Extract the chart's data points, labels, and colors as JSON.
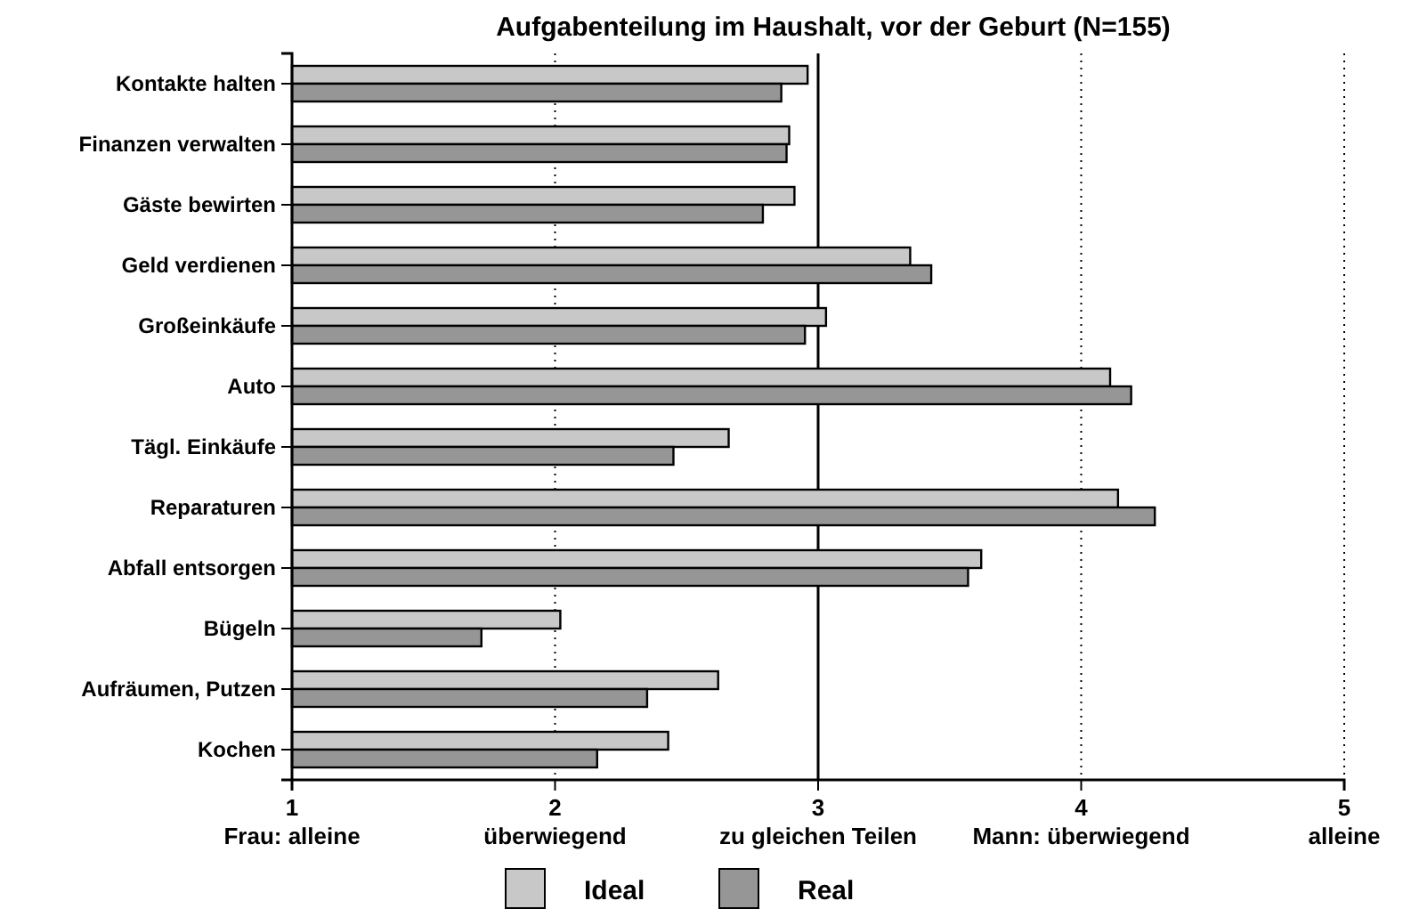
{
  "chart_data": {
    "type": "bar",
    "orientation": "horizontal",
    "title": "Aufgabenteilung im Haushalt, vor der Geburt (N=155)",
    "categories": [
      "Kontakte halten",
      "Finanzen verwalten",
      "Gäste bewirten",
      "Geld verdienen",
      "Großeinkäufe",
      "Auto",
      "Tägl. Einkäufe",
      "Reparaturen",
      "Abfall entsorgen",
      "Bügeln",
      "Aufräumen, Putzen",
      "Kochen"
    ],
    "series": [
      {
        "name": "Ideal",
        "color": "#c8c8c8",
        "values": [
          2.96,
          2.89,
          2.91,
          3.35,
          3.03,
          4.11,
          2.66,
          4.14,
          3.62,
          2.02,
          2.62,
          2.43
        ]
      },
      {
        "name": "Real",
        "color": "#969696",
        "values": [
          2.86,
          2.88,
          2.79,
          3.43,
          2.95,
          4.19,
          2.45,
          4.28,
          3.57,
          1.72,
          2.35,
          2.16
        ]
      }
    ],
    "xlim": [
      1,
      5
    ],
    "xticks": [
      {
        "value": 1,
        "label": "1\nFrau: alleine"
      },
      {
        "value": 2,
        "label": "2\nüberwiegend"
      },
      {
        "value": 3,
        "label": "3\nzu gleichen Teilen"
      },
      {
        "value": 4,
        "label": "4\nMann: überwiegend"
      },
      {
        "value": 5,
        "label": "5\nalleine"
      }
    ],
    "grid": "x",
    "line_style": "dotted",
    "ref_lines": [
      {
        "axis": "x",
        "value": 3,
        "line_style": "solid"
      }
    ],
    "legend": "bottom"
  }
}
